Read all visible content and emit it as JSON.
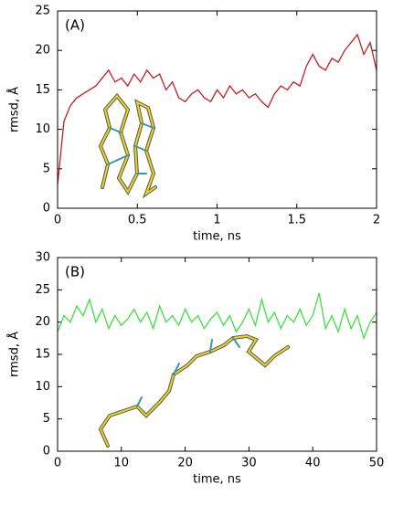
{
  "chart_data": [
    {
      "type": "line",
      "annotation": "(A)",
      "xlabel": "time, ns",
      "ylabel": "rmsd, Å",
      "xlim": [
        0,
        2
      ],
      "xticks": [
        0,
        0.5,
        1,
        1.5,
        2
      ],
      "ylim": [
        0,
        25
      ],
      "yticks": [
        0,
        5,
        10,
        15,
        20,
        25
      ],
      "series": [
        {
          "name": null,
          "color": "#c41e24",
          "x": [
            0,
            0.04,
            0.08,
            0.12,
            0.16,
            0.2,
            0.24,
            0.28,
            0.32,
            0.36,
            0.4,
            0.44,
            0.48,
            0.52,
            0.56,
            0.6,
            0.64,
            0.68,
            0.72,
            0.76,
            0.8,
            0.84,
            0.88,
            0.92,
            0.96,
            1.0,
            1.04,
            1.08,
            1.12,
            1.16,
            1.2,
            1.24,
            1.28,
            1.32,
            1.36,
            1.4,
            1.44,
            1.48,
            1.52,
            1.56,
            1.6,
            1.64,
            1.68,
            1.72,
            1.76,
            1.8,
            1.84,
            1.88,
            1.92,
            1.96,
            2.0
          ],
          "values": [
            3,
            11,
            13,
            14,
            14.5,
            15,
            15.5,
            16.5,
            17.5,
            16,
            16.5,
            15.5,
            17,
            16,
            17.5,
            16.5,
            17,
            15,
            16,
            14,
            13.5,
            14.5,
            15,
            14,
            13.5,
            15,
            14,
            15.5,
            14.5,
            15,
            14,
            14.5,
            13.5,
            12.8,
            14.5,
            15.5,
            15,
            16,
            15.5,
            18,
            19.5,
            18,
            17.5,
            19,
            18.5,
            20,
            21,
            22,
            19.5,
            21,
            17.5
          ]
        }
      ]
    },
    {
      "type": "line",
      "annotation": "(B)",
      "xlabel": "time, ns",
      "ylabel": "rmsd, Å",
      "xlim": [
        0,
        50
      ],
      "xticks": [
        0,
        10,
        20,
        30,
        40,
        50
      ],
      "ylim": [
        0,
        30
      ],
      "yticks": [
        0,
        5,
        10,
        15,
        20,
        25,
        30
      ],
      "series": [
        {
          "name": null,
          "color": "#3ee03e",
          "x": [
            0,
            1,
            2,
            3,
            4,
            5,
            6,
            7,
            8,
            9,
            10,
            11,
            12,
            13,
            14,
            15,
            16,
            17,
            18,
            19,
            20,
            21,
            22,
            23,
            24,
            25,
            26,
            27,
            28,
            29,
            30,
            31,
            32,
            33,
            34,
            35,
            36,
            37,
            38,
            39,
            40,
            41,
            42,
            43,
            44,
            45,
            46,
            47,
            48,
            49,
            50
          ],
          "values": [
            18.5,
            21,
            20,
            22.5,
            21,
            23.5,
            20,
            22,
            19,
            21,
            19.5,
            20.5,
            22,
            20,
            21.5,
            19,
            22.5,
            20,
            21,
            19.5,
            22,
            20,
            21,
            19,
            20.5,
            21.5,
            19.5,
            21,
            18.5,
            20,
            22,
            19.5,
            23.5,
            20,
            21.5,
            19,
            21,
            20,
            22,
            19.5,
            21,
            24.5,
            19,
            21,
            18.5,
            22,
            19,
            21,
            17.5,
            20,
            21.5
          ]
        }
      ]
    }
  ]
}
